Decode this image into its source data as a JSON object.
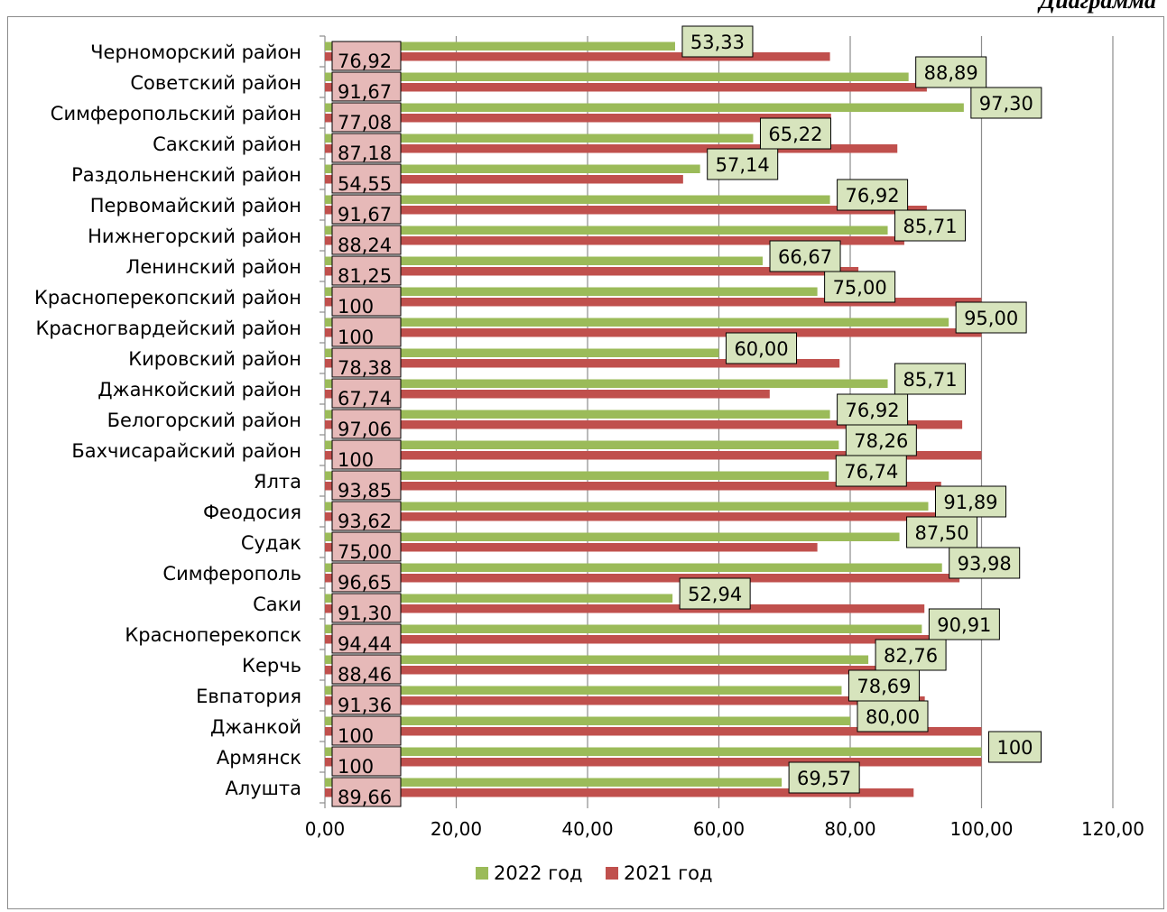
{
  "header": {
    "corner_text": "Диаграмма"
  },
  "chart_data": {
    "type": "bar",
    "orientation": "horizontal",
    "categories": [
      "Черноморский  район",
      "Советский  район",
      "Симферопольский  район",
      "Сакский  район",
      "Раздольненский  район",
      "Первомайский  район",
      "Нижнегорский  район",
      "Ленинский  район",
      "Красноперекопский  район",
      "Красногвардейский  район",
      "Кировский  район",
      "Джанкойский  район",
      "Белогорский  район",
      "Бахчисарайский район",
      "Ялта",
      "Феодосия",
      "Судак",
      "Симферополь",
      "Саки",
      "Красноперекопск",
      "Керчь",
      "Евпатория",
      "Джанкой",
      "Армянск",
      "Алушта"
    ],
    "series": [
      {
        "name": "2022 год",
        "color": "#9bbb59",
        "values": [
          53.33,
          88.89,
          97.3,
          65.22,
          57.14,
          76.92,
          85.71,
          66.67,
          75.0,
          95.0,
          60.0,
          85.71,
          76.92,
          78.26,
          76.74,
          91.89,
          87.5,
          93.98,
          52.94,
          90.91,
          82.76,
          78.69,
          80.0,
          100,
          69.57
        ],
        "labels": [
          "53,33",
          "88,89",
          "97,30",
          "65,22",
          "57,14",
          "76,92",
          "85,71",
          "66,67",
          "75,00",
          "95,00",
          "60,00",
          "85,71",
          "76,92",
          "78,26",
          "76,74",
          "91,89",
          "87,50",
          "93,98",
          "52,94",
          "90,91",
          "82,76",
          "78,69",
          "80,00",
          "100",
          "69,57"
        ]
      },
      {
        "name": "2021 год",
        "color": "#c0504d",
        "values": [
          76.92,
          91.67,
          77.08,
          87.18,
          54.55,
          91.67,
          88.24,
          81.25,
          100,
          100,
          78.38,
          67.74,
          97.06,
          100,
          93.85,
          93.62,
          75.0,
          96.65,
          91.3,
          94.44,
          88.46,
          91.36,
          100,
          100,
          89.66
        ],
        "labels": [
          "76,92",
          "91,67",
          "77,08",
          "87,18",
          "54,55",
          "91,67",
          "88,24",
          "81,25",
          "100",
          "100",
          "78,38",
          "67,74",
          "97,06",
          "100",
          "93,85",
          "93,62",
          "75,00",
          "96,65",
          "91,30",
          "94,44",
          "88,46",
          "91,36",
          "100",
          "100",
          "89,66"
        ]
      }
    ],
    "xlim": [
      0,
      120
    ],
    "x_ticks": [
      "0,00",
      "20,00",
      "40,00",
      "60,00",
      "80,00",
      "100,00",
      "120,00"
    ],
    "grid": true,
    "legend_position": "bottom",
    "label_box_colors": {
      "2022 год": "#d7e4bd",
      "2021 год": "#e6b9b8"
    }
  }
}
